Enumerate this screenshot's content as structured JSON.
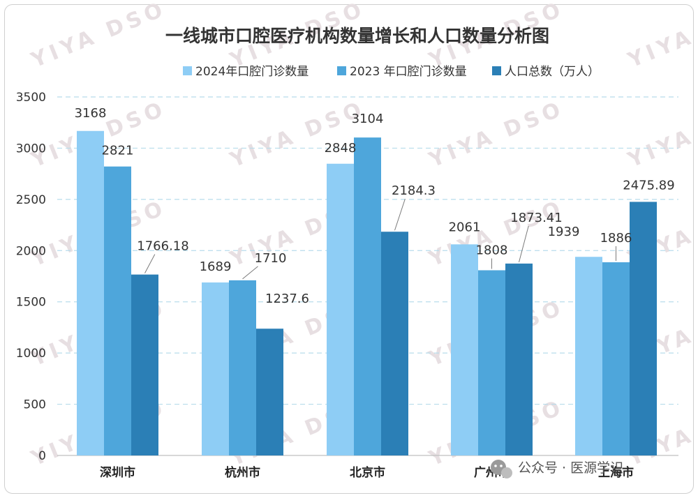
{
  "chart_data": {
    "type": "bar",
    "title": "一线城市口腔医疗机构数量增长和人口数量分析图",
    "categories": [
      "深圳市",
      "杭州市",
      "北京市",
      "广州市",
      "上海市"
    ],
    "series": [
      {
        "name": "2024年口腔门诊数量",
        "values": [
          3168,
          1689,
          2848,
          2061,
          1939
        ]
      },
      {
        "name": "2023 年口腔门诊数量",
        "values": [
          2821,
          1710,
          3104,
          1808,
          1886
        ]
      },
      {
        "name": "人口总数（万人）",
        "values": [
          1766.18,
          1237.6,
          2184.3,
          1873.41,
          2475.89
        ]
      }
    ],
    "data_labels": [
      [
        "3168",
        "1689",
        "2848",
        "2061",
        "1939"
      ],
      [
        "2821",
        "1710",
        "3104",
        "1808",
        "1886"
      ],
      [
        "1766.18",
        "1237.6",
        "2184.3",
        "1873.41",
        "2475.89"
      ]
    ],
    "yticks": [
      0,
      500,
      1000,
      1500,
      2000,
      2500,
      3000,
      3500
    ],
    "ylim": [
      0,
      3500
    ],
    "grid": true,
    "legend": "top-right",
    "colors": [
      "#8ecdf5",
      "#4ea6db",
      "#2b7fb6"
    ]
  },
  "watermark": "YIYA DSO",
  "footer": {
    "text": "公众号 · 医源学识",
    "icon": "wechat-icon"
  }
}
